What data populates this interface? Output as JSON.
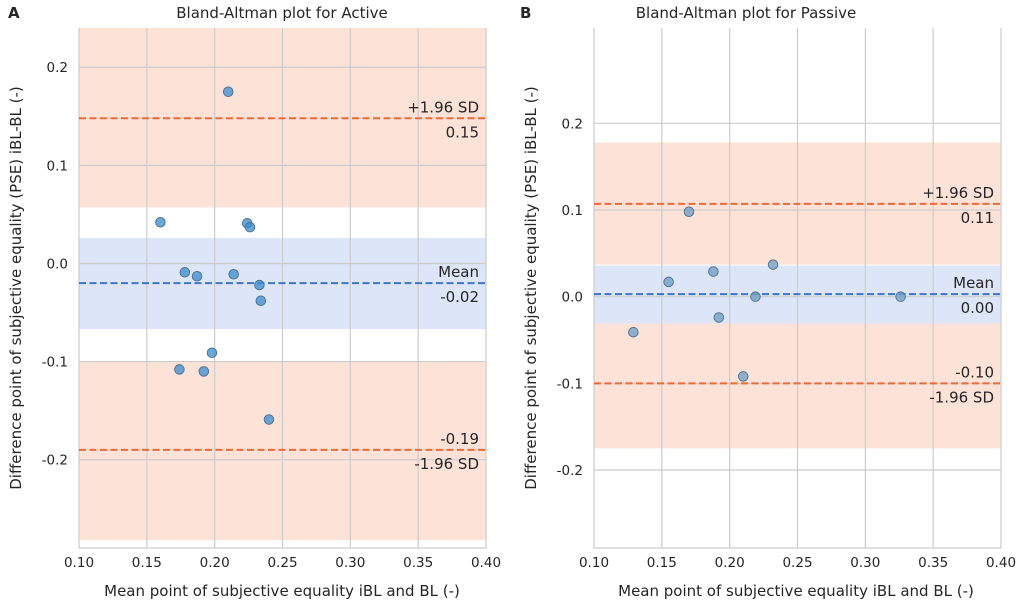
{
  "chart_data": [
    {
      "panel": "A",
      "type": "scatter",
      "title": "Bland-Altman plot for Active",
      "xlabel": "Mean point of subjective equality iBL and BL (-)",
      "ylabel": "Difference point of subjective equality (PSE) iBL-BL (-)",
      "xlim": [
        0.1,
        0.4
      ],
      "ylim": [
        -0.29,
        0.24
      ],
      "xticks": [
        "0.10",
        "0.15",
        "0.20",
        "0.25",
        "0.30",
        "0.35",
        "0.40"
      ],
      "xtick_values": [
        0.1,
        0.15,
        0.2,
        0.25,
        0.3,
        0.35,
        0.4
      ],
      "yticks": [
        "-0.2",
        "-0.1",
        "0.0",
        "0.1",
        "0.2"
      ],
      "ytick_values": [
        -0.2,
        -0.1,
        0.0,
        0.1,
        0.2
      ],
      "grid": true,
      "bands": [
        {
          "name": "upper-loa-band",
          "from": 0.057,
          "to": 0.24,
          "color": "#fde2d8"
        },
        {
          "name": "mean-band",
          "from": -0.067,
          "to": 0.026,
          "color": "#dde6f8"
        },
        {
          "name": "lower-loa-band",
          "from": -0.282,
          "to": -0.1,
          "color": "#fde2d8"
        }
      ],
      "lines": [
        {
          "name": "upper-loa",
          "y": 0.148,
          "color": "#ec6a36",
          "label_top": "+1.96 SD",
          "label_bottom": "0.15"
        },
        {
          "name": "mean",
          "y": -0.02,
          "color": "#3d74d4",
          "label_top": "Mean",
          "label_bottom": "-0.02"
        },
        {
          "name": "lower-loa",
          "y": -0.19,
          "color": "#ec6a36",
          "label_top": "-0.19",
          "label_bottom": "-1.96 SD"
        }
      ],
      "point_color": "#3d8ecf",
      "points": [
        {
          "x": 0.16,
          "y": 0.042
        },
        {
          "x": 0.174,
          "y": -0.108
        },
        {
          "x": 0.178,
          "y": -0.009
        },
        {
          "x": 0.187,
          "y": -0.013
        },
        {
          "x": 0.192,
          "y": -0.11
        },
        {
          "x": 0.198,
          "y": -0.091
        },
        {
          "x": 0.21,
          "y": 0.175
        },
        {
          "x": 0.214,
          "y": -0.011
        },
        {
          "x": 0.224,
          "y": 0.041
        },
        {
          "x": 0.226,
          "y": 0.037
        },
        {
          "x": 0.233,
          "y": -0.022
        },
        {
          "x": 0.234,
          "y": -0.038
        },
        {
          "x": 0.24,
          "y": -0.159
        }
      ]
    },
    {
      "panel": "B",
      "type": "scatter",
      "title": "Bland-Altman plot for Passive",
      "xlabel": "Mean point of subjective equality iBL and BL (-)",
      "ylabel": "Difference point of subjective equality (PSE) iBL-BL (-)",
      "xlim": [
        0.1,
        0.4
      ],
      "ylim": [
        -0.29,
        0.31
      ],
      "xticks": [
        "0.10",
        "0.15",
        "0.20",
        "0.25",
        "0.30",
        "0.35",
        "0.40"
      ],
      "xtick_values": [
        0.1,
        0.15,
        0.2,
        0.25,
        0.3,
        0.35,
        0.4
      ],
      "yticks": [
        "-0.2",
        "-0.1",
        "0.0",
        "0.1",
        "0.2"
      ],
      "ytick_values": [
        -0.2,
        -0.1,
        0.0,
        0.1,
        0.2
      ],
      "grid": true,
      "bands": [
        {
          "name": "upper-loa-band",
          "from": 0.037,
          "to": 0.178,
          "color": "#fde2d8"
        },
        {
          "name": "mean-band",
          "from": -0.031,
          "to": 0.036,
          "color": "#dde6f8"
        },
        {
          "name": "lower-loa-band",
          "from": -0.175,
          "to": -0.031,
          "color": "#fde2d8"
        }
      ],
      "lines": [
        {
          "name": "upper-loa",
          "y": 0.107,
          "color": "#ec6a36",
          "label_top": "+1.96 SD",
          "label_bottom": "0.11"
        },
        {
          "name": "mean",
          "y": 0.003,
          "color": "#3d74d4",
          "label_top": "Mean",
          "label_bottom": "0.00"
        },
        {
          "name": "lower-loa",
          "y": -0.1,
          "color": "#ec6a36",
          "label_top": "-0.10",
          "label_bottom": "-1.96 SD"
        }
      ],
      "point_color": "#6f9fc7",
      "points": [
        {
          "x": 0.129,
          "y": -0.041
        },
        {
          "x": 0.155,
          "y": 0.017
        },
        {
          "x": 0.17,
          "y": 0.098
        },
        {
          "x": 0.188,
          "y": 0.029
        },
        {
          "x": 0.192,
          "y": -0.024
        },
        {
          "x": 0.21,
          "y": -0.092
        },
        {
          "x": 0.219,
          "y": 0.0
        },
        {
          "x": 0.232,
          "y": 0.037
        },
        {
          "x": 0.326,
          "y": 0.0
        }
      ]
    }
  ]
}
